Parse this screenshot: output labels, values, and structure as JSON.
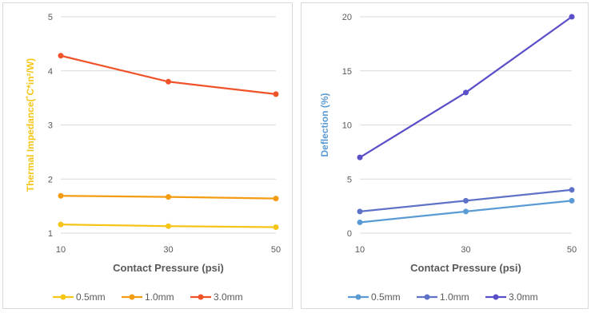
{
  "chart_data": [
    {
      "type": "line",
      "xlabel": "Contact Pressure (psi)",
      "ylabel": "Thermal Impedance(˚C*in²/W)",
      "ylabel_color": "#f5c518",
      "x": [
        10,
        30,
        50
      ],
      "xlim": [
        10,
        50
      ],
      "ylim": [
        1,
        5
      ],
      "yticks": [
        1,
        2,
        3,
        4,
        5
      ],
      "grid": "horizontal",
      "legend": "bottom",
      "series": [
        {
          "name": "0.5mm",
          "color": "#f5c518",
          "values": [
            1.16,
            1.13,
            1.11
          ]
        },
        {
          "name": "1.0mm",
          "color": "#f39c12",
          "values": [
            1.69,
            1.67,
            1.64
          ]
        },
        {
          "name": "3.0mm",
          "color": "#f0532a",
          "values": [
            4.28,
            3.8,
            3.57
          ]
        }
      ]
    },
    {
      "type": "line",
      "xlabel": "Contact Pressure (psi)",
      "ylabel": "Deflection (%)",
      "ylabel_color": "#5b9bd5",
      "x": [
        10,
        30,
        50
      ],
      "xlim": [
        10,
        50
      ],
      "ylim": [
        0,
        20
      ],
      "yticks": [
        0,
        5,
        10,
        15,
        20
      ],
      "grid": "horizontal",
      "legend": "bottom",
      "series": [
        {
          "name": "0.5mm",
          "color": "#5b9bd5",
          "values": [
            1,
            2,
            3
          ]
        },
        {
          "name": "1.0mm",
          "color": "#5e72c7",
          "values": [
            2,
            3,
            4
          ]
        },
        {
          "name": "3.0mm",
          "color": "#5b4fc9",
          "values": [
            7,
            13,
            20
          ]
        }
      ]
    }
  ]
}
